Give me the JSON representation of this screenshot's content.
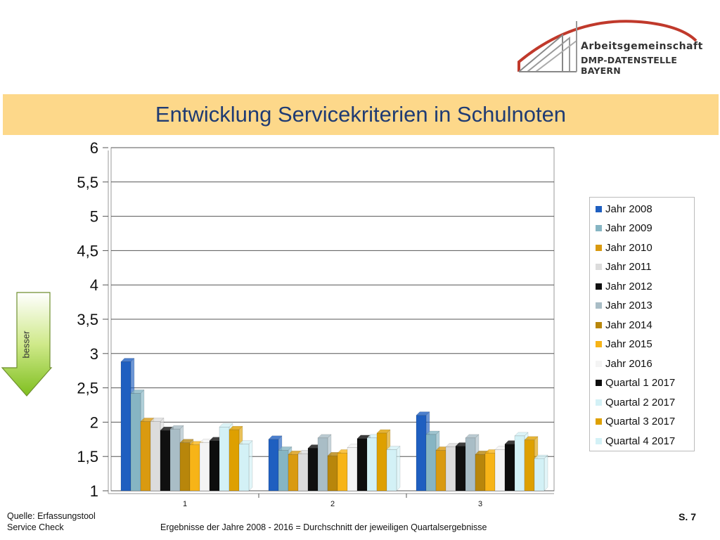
{
  "logo": {
    "line1": "Arbeitsgemeinschaft",
    "line2": "DMP-DATENSTELLE BAYERN"
  },
  "title": "Entwicklung Servicekriterien in Schulnoten",
  "arrow_label": "besser",
  "footer": {
    "source_line1": "Quelle: Erfassungstool",
    "source_line2": "Service Check",
    "note": "Ergebnisse der Jahre 2008 - 2016 = Durchschnitt der jeweiligen Quartalsergebnisse",
    "page": "S. 7"
  },
  "chart_data": {
    "type": "bar",
    "title": "Entwicklung Servicekriterien in Schulnoten",
    "xlabel": "",
    "ylabel": "",
    "ylim": [
      1,
      6
    ],
    "yticks": [
      "1",
      "1,5",
      "2",
      "2,5",
      "3",
      "3,5",
      "4",
      "4,5",
      "5",
      "5,5",
      "6"
    ],
    "categories": [
      "1",
      "2",
      "3"
    ],
    "legend_position": "right",
    "grid": true,
    "series": [
      {
        "name": "Jahr 2008",
        "color": "#1f5fc0",
        "values": [
          2.88,
          1.75,
          2.1
        ]
      },
      {
        "name": "Jahr 2009",
        "color": "#86b5c3",
        "values": [
          2.42,
          1.59,
          1.82
        ]
      },
      {
        "name": "Jahr 2010",
        "color": "#d99a10",
        "values": [
          2.01,
          1.53,
          1.59
        ]
      },
      {
        "name": "Jahr 2011",
        "color": "#dcdcdc",
        "values": [
          2.01,
          1.54,
          1.64
        ]
      },
      {
        "name": "Jahr 2012",
        "color": "#101010",
        "values": [
          1.88,
          1.62,
          1.65
        ]
      },
      {
        "name": "Jahr 2013",
        "color": "#a9bdc6",
        "values": [
          1.9,
          1.77,
          1.77
        ]
      },
      {
        "name": "Jahr 2014",
        "color": "#b8860b",
        "values": [
          1.7,
          1.51,
          1.53
        ]
      },
      {
        "name": "Jahr 2015",
        "color": "#f7b417",
        "values": [
          1.67,
          1.55,
          1.55
        ]
      },
      {
        "name": "Jahr 2016",
        "color": "#f4f4f4",
        "values": [
          1.7,
          1.63,
          1.6
        ]
      },
      {
        "name": "Quartal 1 2017",
        "color": "#0d0d0d",
        "values": [
          1.73,
          1.76,
          1.68
        ]
      },
      {
        "name": "Quartal 2 2017",
        "color": "#d3f1f6",
        "values": [
          1.93,
          1.77,
          1.8
        ]
      },
      {
        "name": "Quartal 3 2017",
        "color": "#dea000",
        "values": [
          1.89,
          1.84,
          1.74
        ]
      },
      {
        "name": "Quartal 4 2017",
        "color": "#d3f1f6",
        "values": [
          1.68,
          1.6,
          1.47
        ]
      }
    ]
  }
}
